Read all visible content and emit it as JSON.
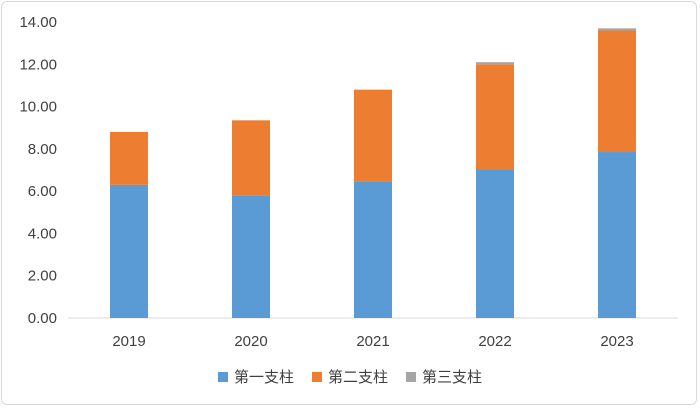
{
  "chart_data": {
    "type": "bar",
    "stacked": true,
    "categories": [
      "2019",
      "2020",
      "2021",
      "2022",
      "2023"
    ],
    "series": [
      {
        "name": "第一支柱",
        "color": "#5b9bd5",
        "values": [
          6.3,
          5.8,
          6.45,
          7.0,
          7.85
        ]
      },
      {
        "name": "第二支柱",
        "color": "#ed7d31",
        "values": [
          2.5,
          3.55,
          4.35,
          5.0,
          5.75
        ]
      },
      {
        "name": "第三支柱",
        "color": "#a5a5a5",
        "values": [
          0.0,
          0.0,
          0.0,
          0.1,
          0.1
        ]
      }
    ],
    "y_ticks": [
      "0.00",
      "2.00",
      "4.00",
      "6.00",
      "8.00",
      "10.00",
      "12.00",
      "14.00"
    ],
    "ylim": [
      0,
      14
    ],
    "grid": false,
    "legend_position": "bottom"
  }
}
